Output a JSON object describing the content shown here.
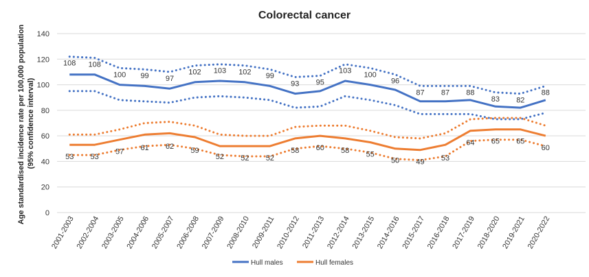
{
  "chart_data": {
    "type": "line",
    "title": "Colorectal cancer",
    "ylabel": "Age standardised  incidence rate per 100,000 population (95% confidence interval)",
    "xlabel": "",
    "ylim": [
      0,
      140
    ],
    "yticks": [
      0,
      20,
      40,
      60,
      80,
      100,
      120,
      140
    ],
    "grid": true,
    "legend_position": "bottom",
    "categories": [
      "2001-2003",
      "2002-2004",
      "2003-2005",
      "2004-2006",
      "2005-2007",
      "2006-2008",
      "2007-2009",
      "2008-2010",
      "2009-2011",
      "2010-2012",
      "2011-2013",
      "2012-2014",
      "2013-2015",
      "2014-2016",
      "2015-2017",
      "2016-2018",
      "2017-2019",
      "2018-2020",
      "2019-2021",
      "2020-2022"
    ],
    "series": [
      {
        "name": "Hull males",
        "color": "#4472C4",
        "values": [
          108,
          108,
          100,
          99,
          97,
          102,
          103,
          102,
          99,
          93,
          95,
          103,
          100,
          96,
          87,
          87,
          88,
          83,
          82,
          88
        ],
        "upper": [
          122,
          121,
          113,
          112,
          110,
          115,
          116,
          115,
          112,
          106,
          107,
          116,
          113,
          108,
          99,
          99,
          99,
          94,
          93,
          99
        ],
        "lower": [
          95,
          95,
          88,
          87,
          86,
          90,
          91,
          90,
          88,
          82,
          83,
          91,
          88,
          84,
          77,
          77,
          77,
          73,
          73,
          78
        ]
      },
      {
        "name": "Hull females",
        "color": "#ED7D31",
        "values": [
          53,
          53,
          57,
          61,
          62,
          59,
          52,
          52,
          52,
          58,
          60,
          58,
          55,
          50,
          49,
          53,
          64,
          65,
          65,
          60
        ],
        "upper": [
          61,
          61,
          65,
          70,
          71,
          68,
          61,
          60,
          60,
          67,
          68,
          68,
          64,
          59,
          58,
          62,
          73,
          74,
          74,
          68
        ],
        "lower": [
          45,
          45,
          49,
          52,
          53,
          50,
          45,
          44,
          44,
          50,
          52,
          50,
          47,
          42,
          41,
          44,
          56,
          57,
          57,
          52
        ]
      }
    ]
  }
}
